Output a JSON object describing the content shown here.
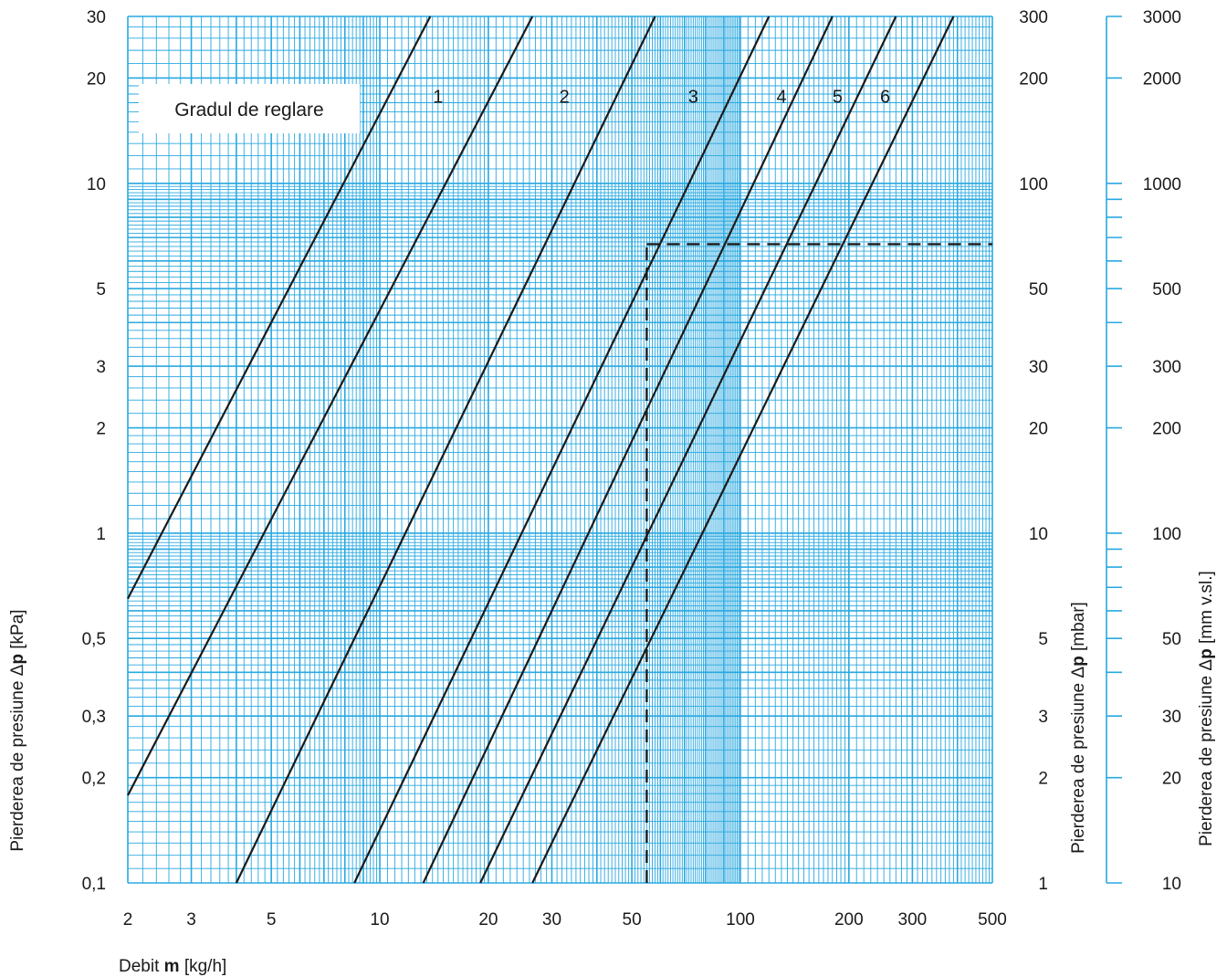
{
  "chart_data": {
    "type": "line",
    "x_scale": "log",
    "y_scale": "log",
    "xlim": [
      2,
      500
    ],
    "ylim": [
      0.1,
      30
    ],
    "grid": true,
    "colors": {
      "grid": "#29a8e0",
      "curve": "#1a1a1a",
      "text": "#1a1a1a"
    },
    "xlabel": {
      "prefix": "Debit ",
      "bold": "m",
      "suffix": " [kg/h]"
    },
    "ylabel_left": {
      "prefix": "Pierderea de presiune Δ",
      "bold": "p",
      "suffix": " [kPa]"
    },
    "ylabel_mid": {
      "prefix": "Pierderea de presiune Δ",
      "bold": "p",
      "suffix": " [mbar]"
    },
    "ylabel_right": {
      "prefix": "Pierderea de presiune Δ",
      "bold": "p",
      "suffix": " [mm v.sl.]"
    },
    "x_ticks": [
      {
        "v": 2,
        "label": "2"
      },
      {
        "v": 3,
        "label": "3"
      },
      {
        "v": 5,
        "label": "5"
      },
      {
        "v": 10,
        "label": "10"
      },
      {
        "v": 20,
        "label": "20"
      },
      {
        "v": 30,
        "label": "30"
      },
      {
        "v": 50,
        "label": "50"
      },
      {
        "v": 100,
        "label": "100"
      },
      {
        "v": 200,
        "label": "200"
      },
      {
        "v": 300,
        "label": "300"
      },
      {
        "v": 500,
        "label": "500"
      }
    ],
    "y_ticks": [
      {
        "v": 30,
        "kpa": "30",
        "mbar": "300",
        "mm": "3000"
      },
      {
        "v": 20,
        "kpa": "20",
        "mbar": "200",
        "mm": "2000"
      },
      {
        "v": 10,
        "kpa": "10",
        "mbar": "100",
        "mm": "1000"
      },
      {
        "v": 5,
        "kpa": "5",
        "mbar": "50",
        "mm": "500"
      },
      {
        "v": 3,
        "kpa": "3",
        "mbar": "30",
        "mm": "300"
      },
      {
        "v": 2,
        "kpa": "2",
        "mbar": "20",
        "mm": "200"
      },
      {
        "v": 1,
        "kpa": "1",
        "mbar": "10",
        "mm": "100"
      },
      {
        "v": 0.5,
        "kpa": "0,5",
        "mbar": "5",
        "mm": "50"
      },
      {
        "v": 0.3,
        "kpa": "0,3",
        "mbar": "3",
        "mm": "30"
      },
      {
        "v": 0.2,
        "kpa": "0,2",
        "mbar": "2",
        "mm": "20"
      },
      {
        "v": 0.1,
        "kpa": "0,1",
        "mbar": "1",
        "mm": "10"
      }
    ],
    "legend_title": "Gradul de reglare",
    "series": [
      {
        "name": "1",
        "points": [
          [
            2,
            0.65
          ],
          [
            13.8,
            30
          ]
        ]
      },
      {
        "name": "2",
        "points": [
          [
            2,
            0.178
          ],
          [
            26.5,
            30
          ]
        ]
      },
      {
        "name": "3",
        "points": [
          [
            4.0,
            0.1
          ],
          [
            58,
            30
          ]
        ]
      },
      {
        "name": "4",
        "points": [
          [
            8.5,
            0.1
          ],
          [
            120,
            30
          ]
        ]
      },
      {
        "name": "5",
        "points": [
          [
            13.2,
            0.1
          ],
          [
            180,
            30
          ]
        ]
      },
      {
        "name": "6",
        "points": [
          [
            19.0,
            0.1
          ],
          [
            270,
            30
          ]
        ]
      },
      {
        "name": "",
        "points": [
          [
            26.5,
            0.1
          ],
          [
            390,
            30
          ]
        ]
      }
    ],
    "series_label_positions": [
      {
        "name": "1",
        "x": 14.5,
        "y": 20
      },
      {
        "name": "2",
        "x": 32.5,
        "y": 20
      },
      {
        "name": "3",
        "x": 74,
        "y": 20
      },
      {
        "name": "4",
        "x": 130,
        "y": 20
      },
      {
        "name": "5",
        "x": 186,
        "y": 20
      },
      {
        "name": "6",
        "x": 252,
        "y": 20
      }
    ],
    "example": {
      "x": 55,
      "y": 6.7
    }
  }
}
